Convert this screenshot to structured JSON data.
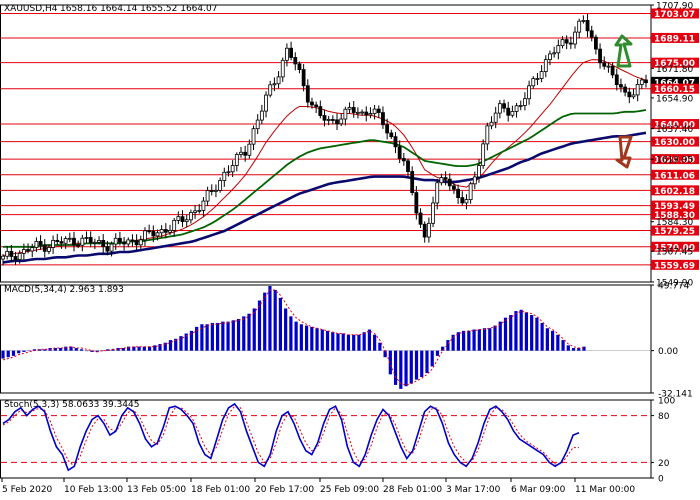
{
  "header": {
    "symbol": "XAUUSD,H4",
    "ohlc": "1658.16 1664.14 1655.52 1664.07",
    "macd_label": "MACD(5,34,4) 2.963 1.893",
    "stoch_label": "Stoch(5,3,3) 58.0633 39.3445"
  },
  "colors": {
    "level_line": "#e3000f",
    "level_label_bg": "#e3000f",
    "candle": "#000000",
    "ma_fast": "#c00000",
    "ma_mid": "#006400",
    "ma_slow": "#0a0a6e",
    "macd_hist": "#0000cc",
    "macd_signal": "#e3000f",
    "stoch_main": "#0000cc",
    "stoch_signal": "#e3000f",
    "arrow_up": "#2e8b2e",
    "arrow_down": "#a0381e",
    "current_label_bg": "#000000"
  },
  "chart_data": [
    {
      "type": "candlestick",
      "name": "price",
      "ylim": [
        1549.9,
        1707.9
      ],
      "y_ticks": [
        "1707.90",
        "1703.07",
        "1689.11",
        "1675.00",
        "1671.80",
        "1664.07",
        "1660.15",
        "1654.90",
        "1640.00",
        "1637.40",
        "1630.00",
        "1620.00",
        "1619.95",
        "1611.06",
        "1602.18",
        "1593.49",
        "1588.30",
        "1584.30",
        "1579.25",
        "1570.00",
        "1567.45",
        "1559.69",
        "1549.90"
      ],
      "support_resistance_levels": [
        1703.07,
        1689.11,
        1675.0,
        1660.15,
        1640.0,
        1630.0,
        1620.0,
        1611.06,
        1602.18,
        1593.49,
        1588.3,
        1579.25,
        1570.0,
        1559.69
      ],
      "current_price": 1664.07,
      "x_tick_labels": [
        "5 Feb 2020",
        "10 Feb 13:00",
        "13 Feb 05:00",
        "18 Feb 01:00",
        "20 Feb 17:00",
        "25 Feb 09:00",
        "28 Feb 01:00",
        "3 Mar 17:00",
        "6 Mar 09:00",
        "11 Mar 00:00"
      ],
      "close_path": [
        1563,
        1566,
        1567,
        1570,
        1571,
        1572,
        1573,
        1574,
        1573,
        1572,
        1571,
        1572,
        1573,
        1575,
        1577,
        1579,
        1582,
        1585,
        1590,
        1595,
        1603,
        1612,
        1618,
        1625,
        1640,
        1655,
        1668,
        1683,
        1670,
        1655,
        1645,
        1640,
        1645,
        1648,
        1645,
        1650,
        1640,
        1630,
        1620,
        1595,
        1575,
        1602,
        1610,
        1600,
        1595,
        1615,
        1640,
        1648,
        1648,
        1650,
        1660,
        1672,
        1680,
        1685,
        1690,
        1700,
        1685,
        1675,
        1665,
        1657,
        1660,
        1664
      ],
      "moving_averages": [
        {
          "name": "MA fast",
          "path": [
            1565,
            1566,
            1567,
            1568,
            1569,
            1570,
            1571,
            1572,
            1572,
            1572,
            1572,
            1572,
            1573,
            1574,
            1575,
            1576,
            1578,
            1580,
            1583,
            1587,
            1592,
            1598,
            1604,
            1611,
            1620,
            1630,
            1638,
            1645,
            1650,
            1650,
            1649,
            1647,
            1646,
            1646,
            1645,
            1645,
            1643,
            1640,
            1634,
            1625,
            1614,
            1610,
            1608,
            1605,
            1604,
            1608,
            1615,
            1622,
            1627,
            1632,
            1638,
            1645,
            1652,
            1660,
            1668,
            1675,
            1677,
            1676,
            1673,
            1670,
            1667,
            1665
          ]
        },
        {
          "name": "MA mid",
          "path": [
            1570,
            1570,
            1570,
            1570,
            1571,
            1571,
            1571,
            1571,
            1572,
            1572,
            1572,
            1572,
            1573,
            1573,
            1574,
            1575,
            1576,
            1577,
            1579,
            1581,
            1584,
            1588,
            1592,
            1597,
            1602,
            1607,
            1612,
            1617,
            1621,
            1624,
            1626,
            1627,
            1628,
            1629,
            1630,
            1631,
            1630,
            1629,
            1627,
            1623,
            1619,
            1618,
            1617,
            1616,
            1616,
            1617,
            1620,
            1623,
            1626,
            1629,
            1632,
            1636,
            1640,
            1644,
            1646,
            1646,
            1646,
            1646,
            1646,
            1647,
            1647,
            1648
          ]
        },
        {
          "name": "MA slow",
          "path": [
            1561,
            1562,
            1562,
            1563,
            1563,
            1564,
            1564,
            1565,
            1565,
            1566,
            1566,
            1567,
            1567,
            1568,
            1569,
            1570,
            1571,
            1572,
            1573,
            1575,
            1577,
            1579,
            1582,
            1585,
            1588,
            1591,
            1594,
            1597,
            1600,
            1602,
            1604,
            1606,
            1607,
            1608,
            1609,
            1610,
            1610,
            1610,
            1610,
            1609,
            1608,
            1608,
            1607,
            1607,
            1608,
            1609,
            1611,
            1613,
            1615,
            1618,
            1620,
            1623,
            1625,
            1627,
            1629,
            1630,
            1631,
            1632,
            1633,
            1633,
            1634,
            1635
          ]
        }
      ]
    },
    {
      "type": "bar",
      "name": "MACD",
      "ylim": [
        -32.141,
        49.774
      ],
      "y_ticks": [
        "49.774",
        "0.00",
        "-32.141"
      ],
      "histogram": [
        -6,
        -5,
        -4,
        -2,
        -1,
        0,
        1,
        1,
        1,
        2,
        2,
        2,
        3,
        3,
        2,
        1,
        0,
        -1,
        -1,
        0,
        1,
        1,
        2,
        2,
        3,
        3,
        3,
        3,
        3,
        4,
        5,
        6,
        8,
        9,
        11,
        13,
        15,
        18,
        20,
        20,
        21,
        21,
        22,
        22,
        23,
        24,
        26,
        28,
        32,
        38,
        44,
        49,
        46,
        40,
        32,
        26,
        22,
        20,
        19,
        18,
        17,
        16,
        15,
        14,
        13,
        13,
        12,
        12,
        12,
        14,
        16,
        12,
        6,
        -5,
        -18,
        -26,
        -29,
        -27,
        -25,
        -22,
        -20,
        -17,
        -12,
        -4,
        3,
        8,
        12,
        14,
        15,
        15,
        16,
        16,
        17,
        17,
        19,
        22,
        25,
        27,
        30,
        31,
        29,
        27,
        25,
        21,
        17,
        15,
        12,
        8,
        4,
        2,
        2,
        3
      ],
      "signal": [
        -7,
        -6,
        -5,
        -3,
        -2,
        -1,
        0,
        1,
        1,
        1,
        2,
        2,
        2,
        3,
        2,
        2,
        1,
        0,
        -1,
        0,
        0,
        1,
        1,
        2,
        2,
        3,
        3,
        3,
        3,
        3,
        4,
        5,
        6,
        8,
        9,
        11,
        13,
        15,
        17,
        19,
        20,
        20,
        21,
        21,
        22,
        23,
        24,
        26,
        29,
        34,
        40,
        46,
        46,
        42,
        36,
        30,
        25,
        22,
        20,
        18,
        17,
        16,
        15,
        14,
        13,
        13,
        12,
        12,
        12,
        13,
        15,
        13,
        8,
        0,
        -10,
        -20,
        -25,
        -26,
        -25,
        -23,
        -21,
        -18,
        -14,
        -7,
        0,
        5,
        10,
        13,
        14,
        15,
        15,
        16,
        16,
        17,
        18,
        20,
        23,
        25,
        28,
        30,
        29,
        28,
        26,
        22,
        18,
        16,
        13,
        9,
        5,
        3,
        2,
        2
      ]
    },
    {
      "type": "line",
      "name": "Stochastic",
      "ylim": [
        0,
        100
      ],
      "y_ticks": [
        "100",
        "80",
        "20",
        "0"
      ],
      "levels": [
        80,
        20
      ],
      "main": [
        70,
        75,
        85,
        90,
        80,
        88,
        92,
        85,
        60,
        40,
        30,
        10,
        15,
        40,
        60,
        75,
        80,
        70,
        55,
        60,
        80,
        90,
        85,
        70,
        50,
        40,
        45,
        65,
        90,
        92,
        88,
        80,
        70,
        45,
        30,
        25,
        50,
        75,
        90,
        95,
        85,
        60,
        40,
        20,
        15,
        30,
        60,
        80,
        85,
        70,
        50,
        35,
        30,
        45,
        70,
        88,
        92,
        75,
        40,
        20,
        15,
        30,
        55,
        75,
        88,
        80,
        60,
        40,
        25,
        35,
        60,
        85,
        92,
        88,
        70,
        45,
        30,
        20,
        15,
        25,
        45,
        70,
        88,
        92,
        85,
        75,
        60,
        50,
        45,
        40,
        35,
        30,
        20,
        15,
        20,
        35,
        55,
        58
      ],
      "signal": [
        68,
        72,
        80,
        87,
        84,
        86,
        89,
        87,
        72,
        52,
        38,
        22,
        15,
        28,
        48,
        66,
        76,
        75,
        63,
        60,
        70,
        84,
        87,
        78,
        62,
        48,
        43,
        55,
        78,
        90,
        90,
        84,
        75,
        58,
        40,
        30,
        40,
        62,
        82,
        92,
        90,
        72,
        52,
        32,
        20,
        25,
        45,
        70,
        82,
        78,
        62,
        45,
        35,
        40,
        58,
        80,
        90,
        82,
        58,
        34,
        20,
        24,
        42,
        65,
        82,
        82,
        70,
        50,
        34,
        32,
        48,
        72,
        88,
        90,
        80,
        58,
        40,
        28,
        20,
        22,
        36,
        58,
        80,
        90,
        88,
        80,
        68,
        56,
        48,
        43,
        38,
        33,
        25,
        18,
        18,
        28,
        39,
        39
      ]
    }
  ]
}
